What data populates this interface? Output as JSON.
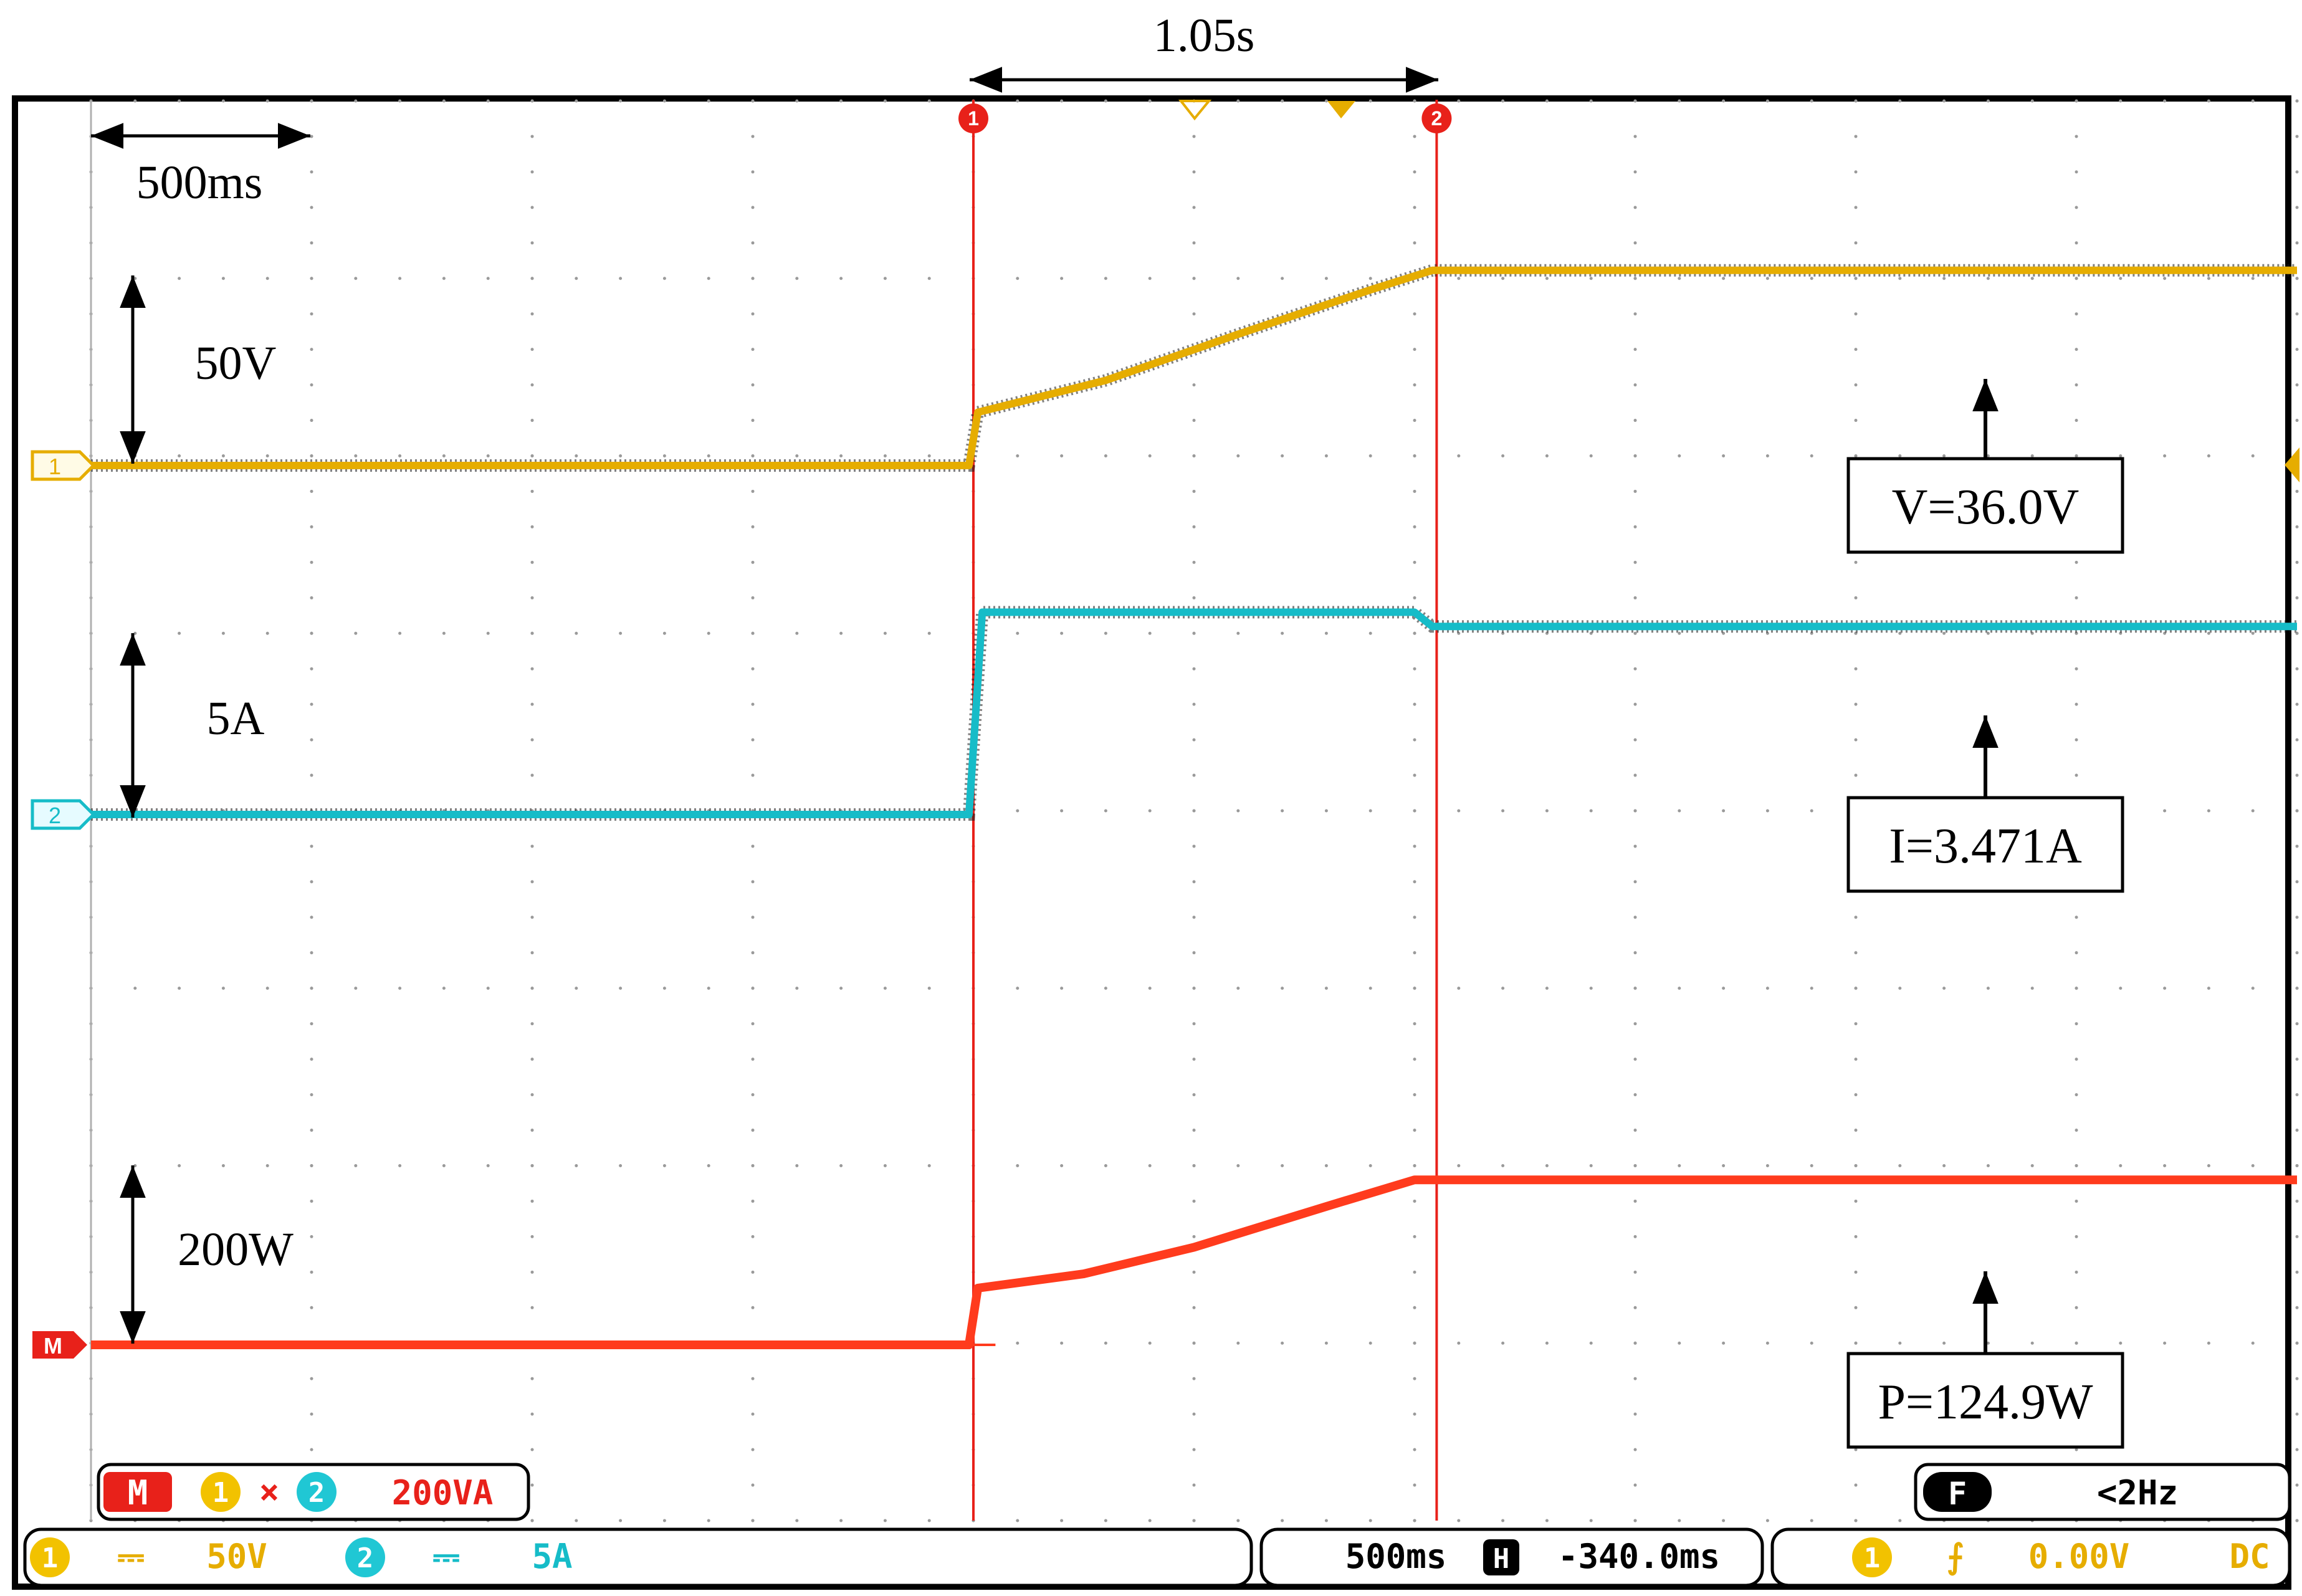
{
  "chart_data": {
    "type": "line",
    "title": "",
    "x_unit": "s",
    "grid": true,
    "series": [
      {
        "channel": "1",
        "color": "#e6ad00",
        "x": [
          0.0,
          1.99,
          2.01,
          2.3,
          2.6,
          2.9,
          3.04,
          5.0
        ],
        "y": [
          0.0,
          0.0,
          0.3,
          0.48,
          0.74,
          0.99,
          1.1,
          1.1
        ]
      },
      {
        "channel": "2",
        "color": "#16bcc8",
        "x": [
          0.0,
          1.99,
          2.01,
          2.02,
          2.05,
          3.0,
          3.04,
          5.0
        ],
        "y": [
          0.0,
          0.0,
          0.75,
          1.14,
          1.14,
          1.14,
          1.06,
          1.06
        ]
      },
      {
        "channel": "M",
        "color": "#ff3b1d",
        "x": [
          0.0,
          1.99,
          2.01,
          2.25,
          2.5,
          2.8,
          3.0,
          5.0
        ],
        "y": [
          0.0,
          0.0,
          0.32,
          0.4,
          0.55,
          0.78,
          0.93,
          0.93
        ]
      }
    ],
    "cursor_x": [
      2.0,
      3.05
    ],
    "annotations": {
      "time_scale": "500ms",
      "cursor_delta": "1.05s",
      "v_scale": "50V",
      "i_scale": "5A",
      "p_scale": "200W",
      "v_value": "V=36.0V",
      "i_value": "I=3.471A",
      "p_value": "P=124.9W"
    }
  },
  "scope": {
    "markers": {
      "ch1": "1",
      "ch2": "2",
      "math": "M"
    },
    "math_box": {
      "m": "M",
      "a": "1",
      "op": "×",
      "b": "2",
      "scale": "200VA"
    },
    "freq_box": {
      "f": "F",
      "value": "<2Hz"
    },
    "status": {
      "ch1": "1",
      "ch1_coupling": "⎓",
      "ch1_scale": "50V",
      "ch2": "2",
      "ch2_coupling": "⎓",
      "ch2_scale": "5A",
      "timebase": "500ms",
      "h": "H",
      "offset": "-340.0ms",
      "trig_ch": "1",
      "trig_slope": "⨍",
      "trig_level": "0.00V",
      "trig_coupling": "DC"
    },
    "colors": {
      "ch1": "#e6ad00",
      "ch2": "#16bcc8",
      "math": "#ff3b1d",
      "cursor": "#e8211a"
    }
  }
}
